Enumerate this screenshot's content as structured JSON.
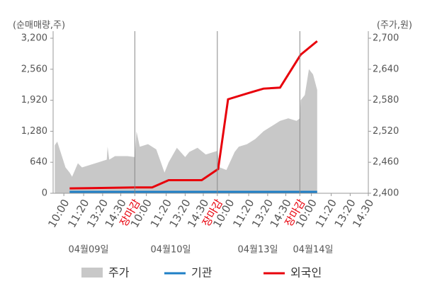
{
  "chart_data": {
    "type": "line",
    "y_axis_label": "(순매매량,주)",
    "y2_axis_label": "(주가,원)",
    "xlim": [
      0,
      38.2
    ],
    "xticks": [
      {
        "value": 1.3,
        "label": "10:00"
      },
      {
        "value": 3.7,
        "label": "11:20"
      },
      {
        "value": 6.0,
        "label": "13:20"
      },
      {
        "value": 8.2,
        "label": "14:30"
      },
      {
        "value": 9.9,
        "label": "장마감",
        "color": "#e8000b"
      },
      {
        "value": 11.3,
        "label": "10:00"
      },
      {
        "value": 13.7,
        "label": "11:20"
      },
      {
        "value": 16.0,
        "label": "13:20"
      },
      {
        "value": 18.2,
        "label": "14:30"
      },
      {
        "value": 19.9,
        "label": "장마감",
        "color": "#e8000b"
      },
      {
        "value": 21.3,
        "label": "10:00"
      },
      {
        "value": 23.7,
        "label": "11:20"
      },
      {
        "value": 26.0,
        "label": "13:20"
      },
      {
        "value": 28.2,
        "label": "14:30"
      },
      {
        "value": 29.9,
        "label": "장마감",
        "color": "#e8000b"
      },
      {
        "value": 31.3,
        "label": "10:00"
      },
      {
        "value": 33.7,
        "label": "11:20"
      },
      {
        "value": 36.0,
        "label": "13:20"
      },
      {
        "value": 38.2,
        "label": "14:30"
      }
    ],
    "date_labels": [
      "04월09일",
      "04월10일",
      "04월13일",
      "04월14일"
    ],
    "ylim": [
      0,
      3200
    ],
    "yticks": [
      0,
      640,
      {
        "value": 1280,
        "label": "1,280"
      },
      {
        "value": 1920,
        "label": "1,920"
      },
      {
        "value": 2560,
        "label": "2,560"
      },
      {
        "value": 3200,
        "label": "3,200"
      }
    ],
    "y2lim": [
      2400,
      2700
    ],
    "y2ticks": [
      {
        "value": 2400,
        "label": "2,400"
      },
      {
        "value": 2460,
        "label": "2,460"
      },
      {
        "value": 2520,
        "label": "2,520"
      },
      {
        "value": 2580,
        "label": "2,580"
      },
      {
        "value": 2640,
        "label": "2,640"
      },
      {
        "value": 2700,
        "label": "2,700"
      }
    ],
    "series": [
      {
        "name": "주가",
        "color": "#c8c8c8",
        "axis": "y2",
        "style": "area",
        "x": [
          0.2,
          0.5,
          1.0,
          1.5,
          2.0,
          2.3,
          3.0,
          3.5,
          4.5,
          5.5,
          6.5,
          6.6,
          6.8,
          7.5,
          9.0,
          9.9,
          10.1,
          10.5,
          11.5,
          12.5,
          13.5,
          14.0,
          15.0,
          16.0,
          16.5,
          17.5,
          18.5,
          19.9,
          20.2,
          21.0,
          22.0,
          22.5,
          23.5,
          24.5,
          25.5,
          26.5,
          27.5,
          28.5,
          29.5,
          29.9,
          30.0,
          30.5,
          31.0,
          31.5,
          32.0
        ],
        "values": [
          2493,
          2500,
          2475,
          2450,
          2440,
          2432,
          2458,
          2450,
          2455,
          2460,
          2465,
          2490,
          2465,
          2472,
          2472,
          2470,
          2520,
          2490,
          2495,
          2485,
          2440,
          2460,
          2488,
          2470,
          2480,
          2488,
          2475,
          2482,
          2450,
          2445,
          2480,
          2490,
          2495,
          2505,
          2520,
          2530,
          2540,
          2545,
          2540,
          2545,
          2580,
          2590,
          2640,
          2630,
          2600
        ]
      },
      {
        "name": "기관",
        "color": "#1f7fc6",
        "style": "line",
        "x": [
          2.0,
          32.0
        ],
        "values": [
          30,
          30
        ]
      },
      {
        "name": "외국인",
        "color": "#e8000b",
        "style": "line",
        "x": [
          2.0,
          9.9,
          12.0,
          14.0,
          18.0,
          20.0,
          21.2,
          23.5,
          25.5,
          27.5,
          30.0,
          32.0
        ],
        "values": [
          100,
          120,
          120,
          270,
          270,
          500,
          1940,
          2060,
          2160,
          2180,
          2860,
          3140
        ]
      }
    ]
  }
}
